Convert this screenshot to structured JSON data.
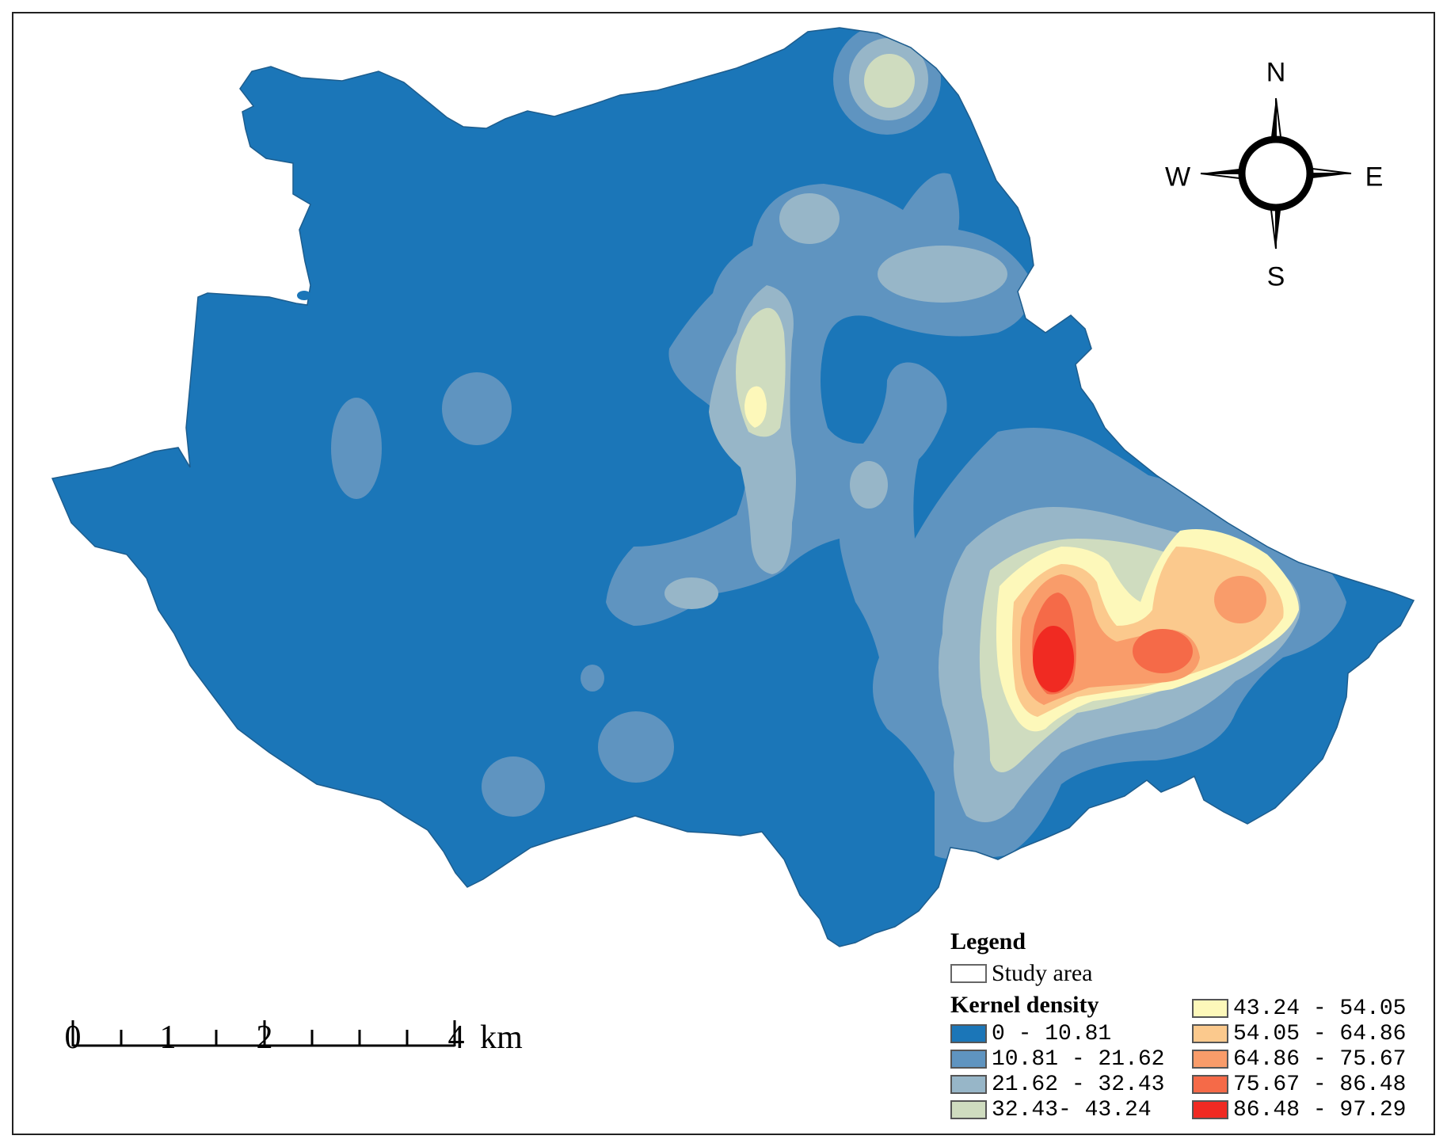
{
  "compass": {
    "n": "N",
    "s": "S",
    "e": "E",
    "w": "W"
  },
  "scale_bar": {
    "ticks": [
      "0",
      "1",
      "2",
      "4"
    ],
    "unit": "km"
  },
  "legend": {
    "title": "Legend",
    "study_area_label": "Study area",
    "density_title": "Kernel density",
    "classes": [
      {
        "label": "0 - 10.81",
        "color": "#1b76b8"
      },
      {
        "label": "10.81 - 21.62",
        "color": "#5f94c0"
      },
      {
        "label": "21.62 - 32.43",
        "color": "#97b6c8"
      },
      {
        "label": "32.43- 43.24",
        "color": "#cfdcbf"
      },
      {
        "label": "43.24 - 54.05",
        "color": "#fdf8ba"
      },
      {
        "label": "54.05 - 64.86",
        "color": "#fbc98d"
      },
      {
        "label": "64.86 - 75.67",
        "color": "#f99c6a"
      },
      {
        "label": "75.67 - 86.48",
        "color": "#f56a48"
      },
      {
        "label": "86.48 - 97.29",
        "color": "#f02a22"
      }
    ]
  }
}
